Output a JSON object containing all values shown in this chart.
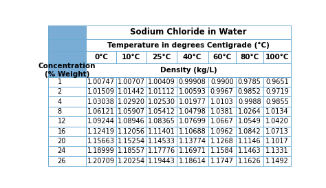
{
  "title": "Sodium Chloride in Water",
  "subtitle": "Temperature in degrees Centigrade (°C)",
  "density_label": "Density (kg/L)",
  "temperatures": [
    "0°C",
    "10°C",
    "25°C",
    "40°C",
    "60°C",
    "80°C",
    "100°C"
  ],
  "concentrations": [
    "1",
    "2",
    "4",
    "8",
    "12",
    "16",
    "20",
    "24",
    "26"
  ],
  "data": [
    [
      "1.00747",
      "1.00707",
      "1.00409",
      "0.99908",
      "0.9900",
      "0.9785",
      "0.9651"
    ],
    [
      "1.01509",
      "1.01442",
      "1.01112",
      "1.00593",
      "0.9967",
      "0.9852",
      "0.9719"
    ],
    [
      "1.03038",
      "1.02920",
      "1.02530",
      "1.01977",
      "1.0103",
      "0.9988",
      "0.9855"
    ],
    [
      "1.06121",
      "1.05907",
      "1.05412",
      "1.04798",
      "1.0381",
      "1.0264",
      "1.0134"
    ],
    [
      "1.09244",
      "1.08946",
      "1.08365",
      "1.07699",
      "1.0667",
      "1.0549",
      "1.0420"
    ],
    [
      "1.12419",
      "1.12056",
      "1.11401",
      "1.10688",
      "1.0962",
      "1.0842",
      "1.0713"
    ],
    [
      "1.15663",
      "1.15254",
      "1.14533",
      "1.13774",
      "1.1268",
      "1.1146",
      "1.1017"
    ],
    [
      "1.18999",
      "1.18557",
      "1.17776",
      "1.16971",
      "1.1584",
      "1.1463",
      "1.1331"
    ],
    [
      "1.20709",
      "1.20254",
      "1.19443",
      "1.18614",
      "1.1747",
      "1.1626",
      "1.1492"
    ]
  ],
  "header_bg": "#7aadd6",
  "border_color": "#6baad4",
  "title_fontsize": 8.5,
  "header_fontsize": 7.5,
  "cell_fontsize": 7.0,
  "conc_label_fontsize": 7.5
}
